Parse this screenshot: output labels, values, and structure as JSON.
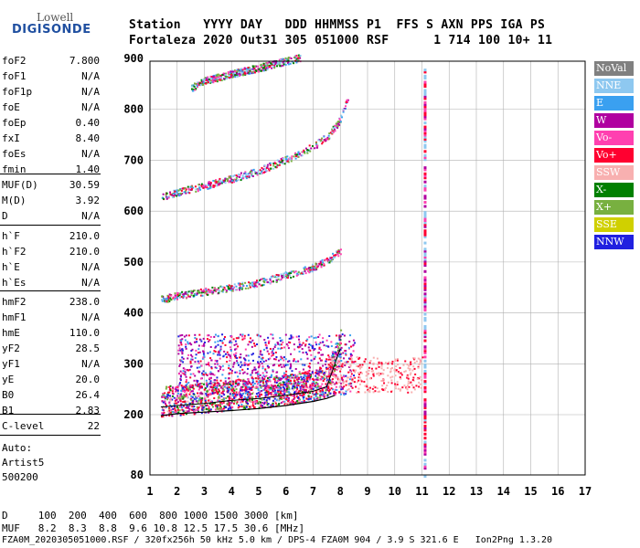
{
  "logo": {
    "line1": "Lowell",
    "line2": "DIGISONDE"
  },
  "header": {
    "row1": "Station   YYYY DAY   DDD HHMMSS P1  FFS S AXN PPS IGA PS",
    "row2": "Fortaleza 2020 Out31 305 051000 RSF      1 714 100 10+ 11"
  },
  "params_group1": [
    {
      "label": "foF2",
      "value": "7.800"
    },
    {
      "label": "foF1",
      "value": "N/A"
    },
    {
      "label": "foF1p",
      "value": "N/A"
    },
    {
      "label": "foE",
      "value": "N/A"
    },
    {
      "label": "foEp",
      "value": "0.40"
    },
    {
      "label": "fxI",
      "value": "8.40"
    },
    {
      "label": "foEs",
      "value": "N/A"
    },
    {
      "label": "fmin",
      "value": "1.40"
    }
  ],
  "params_group2": [
    {
      "label": "MUF(D)",
      "value": "30.59"
    },
    {
      "label": "M(D)",
      "value": "3.92"
    },
    {
      "label": "D",
      "value": "N/A"
    }
  ],
  "params_group3": [
    {
      "label": "h`F",
      "value": "210.0"
    },
    {
      "label": "h`F2",
      "value": "210.0"
    },
    {
      "label": "h`E",
      "value": "N/A"
    },
    {
      "label": "h`Es",
      "value": "N/A"
    }
  ],
  "params_group4": [
    {
      "label": "hmF2",
      "value": "238.0"
    },
    {
      "label": "hmF1",
      "value": "N/A"
    },
    {
      "label": "hmE",
      "value": "110.0"
    },
    {
      "label": "yF2",
      "value": "28.5"
    },
    {
      "label": "yF1",
      "value": "N/A"
    },
    {
      "label": "yE",
      "value": "20.0"
    },
    {
      "label": "B0",
      "value": "26.4"
    },
    {
      "label": "B1",
      "value": "2.83"
    }
  ],
  "params_group5": [
    {
      "label": "C-level",
      "value": "22"
    }
  ],
  "auto": {
    "line1": "Auto:",
    "line2": "Artist5",
    "line3": "500200"
  },
  "legend": [
    {
      "label": "NoVal",
      "color": "#808080"
    },
    {
      "label": "NNE",
      "color": "#8ec8f0"
    },
    {
      "label": "E",
      "color": "#3aa0f0"
    },
    {
      "label": "W",
      "color": "#b000a0"
    },
    {
      "label": "Vo-",
      "color": "#ff40b0"
    },
    {
      "label": "Vo+",
      "color": "#ff0030"
    },
    {
      "label": "SSW",
      "color": "#f8b0b0"
    },
    {
      "label": "X-",
      "color": "#008000"
    },
    {
      "label": "X+",
      "color": "#78b040"
    },
    {
      "label": "SSE",
      "color": "#d0d000"
    },
    {
      "label": "NNW",
      "color": "#2020e0"
    }
  ],
  "footer": {
    "d_row": "D     100  200  400  600  800 1000 1500 3000 [km]",
    "muf_row": "MUF   8.2  8.3  8.8  9.6 10.8 12.5 17.5 30.6 [MHz]",
    "file_row": "FZA0M_2020305051000.RSF / 320fx256h 50 kHz 5.0 km / DPS-4 FZA0M 904 / 3.9 S 321.6 E   Ion2Png 1.3.20"
  },
  "chart_data": {
    "type": "scatter",
    "x_ticks": [
      1,
      2,
      3,
      4,
      5,
      6,
      7,
      8,
      9,
      10,
      11,
      12,
      13,
      14,
      15,
      16,
      17
    ],
    "y_ticks": [
      80,
      200,
      300,
      400,
      500,
      600,
      700,
      800,
      900
    ],
    "xlim": [
      1,
      17
    ],
    "ylim": [
      80,
      900
    ],
    "grid": true,
    "legend_position": "right",
    "traces": [
      {
        "name": "F2 trace",
        "points": [
          [
            1.4,
            215
          ],
          [
            2,
            218
          ],
          [
            3,
            222
          ],
          [
            4,
            228
          ],
          [
            5,
            232
          ],
          [
            6,
            238
          ],
          [
            7,
            246
          ],
          [
            7.5,
            255
          ],
          [
            7.8,
            300
          ],
          [
            8,
            330
          ]
        ]
      },
      {
        "name": "2F2 echo",
        "points": [
          [
            1.4,
            425
          ],
          [
            2,
            432
          ],
          [
            3,
            440
          ],
          [
            4,
            448
          ],
          [
            5,
            458
          ],
          [
            6,
            472
          ],
          [
            7,
            488
          ],
          [
            7.6,
            505
          ],
          [
            8,
            520
          ]
        ]
      },
      {
        "name": "3F2 echo",
        "points": [
          [
            1.4,
            625
          ],
          [
            2,
            635
          ],
          [
            3,
            648
          ],
          [
            4,
            662
          ],
          [
            5,
            678
          ],
          [
            6,
            700
          ],
          [
            7,
            725
          ],
          [
            7.6,
            750
          ],
          [
            8,
            780
          ],
          [
            8.3,
            830
          ]
        ]
      },
      {
        "name": "4F2 echo",
        "points": [
          [
            2.5,
            840
          ],
          [
            3,
            855
          ],
          [
            4,
            868
          ],
          [
            5,
            880
          ],
          [
            6,
            893
          ],
          [
            6.5,
            900
          ]
        ]
      }
    ],
    "profile_curve": [
      [
        1.4,
        198
      ],
      [
        2,
        202
      ],
      [
        3,
        205
      ],
      [
        4,
        208
      ],
      [
        5,
        212
      ],
      [
        6,
        218
      ],
      [
        7,
        226
      ],
      [
        7.5,
        232
      ],
      [
        7.8,
        238
      ]
    ],
    "vertical_line_x": 11.1
  }
}
